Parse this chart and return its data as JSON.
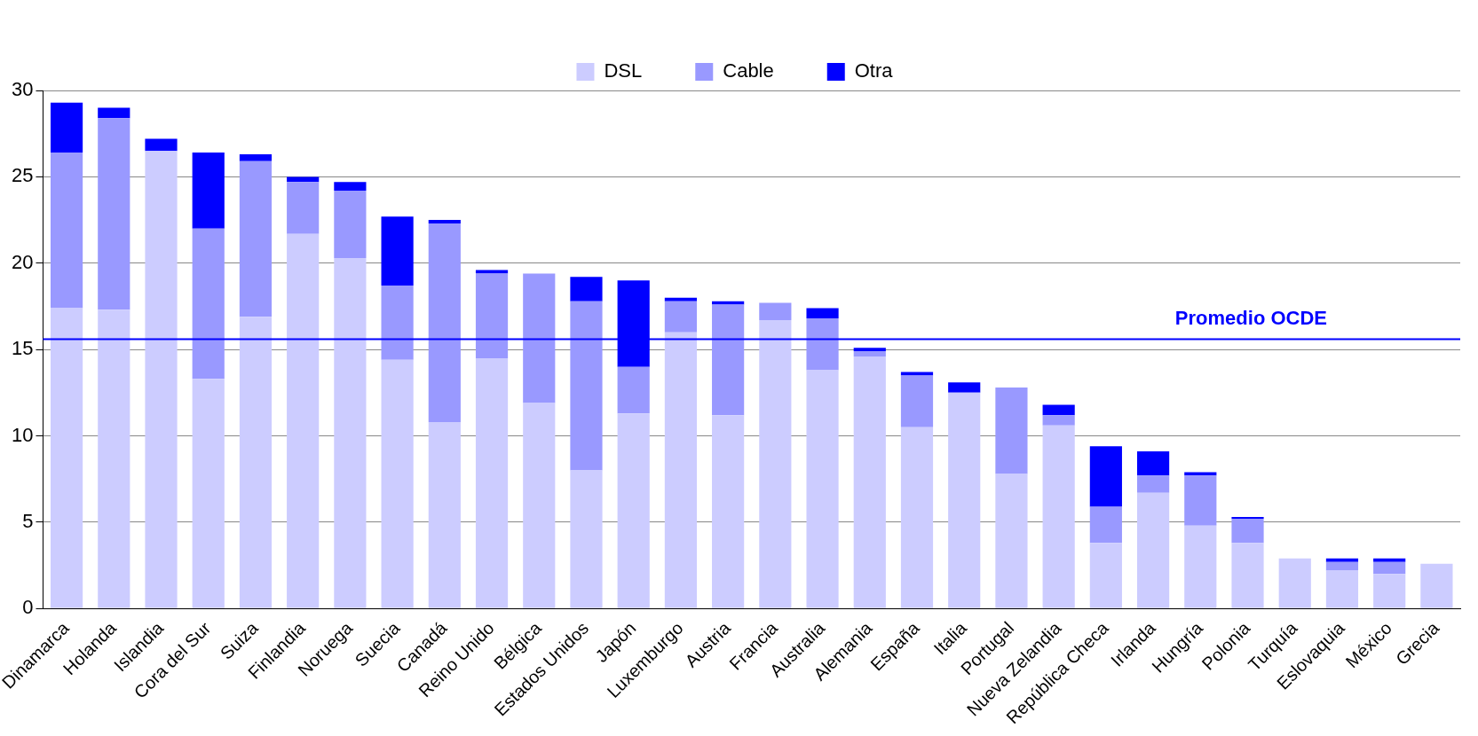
{
  "chart_data": {
    "type": "bar",
    "stacked": true,
    "categories": [
      "Dinamarca",
      "Holanda",
      "Islandia",
      "Cora del Sur",
      "Suiza",
      "Finlandia",
      "Noruega",
      "Suecia",
      "Canadá",
      "Reino Unido",
      "Bélgica",
      "Estados Unidos",
      "Japón",
      "Luxemburgo",
      "Austria",
      "Francia",
      "Australia",
      "Alemania",
      "España",
      "Italia",
      "Portugal",
      "Nueva Zelandia",
      "República Checa",
      "Irlanda",
      "Hungría",
      "Polonia",
      "Turquía",
      "Eslovaquia",
      "México",
      "Grecia"
    ],
    "series": [
      {
        "name": "DSL",
        "color": "#ccccff",
        "values": [
          17.4,
          17.3,
          26.5,
          13.3,
          16.9,
          21.7,
          20.3,
          14.4,
          10.8,
          14.5,
          11.9,
          8.0,
          11.3,
          16.0,
          11.2,
          16.7,
          13.8,
          14.6,
          10.5,
          12.5,
          7.8,
          10.6,
          3.8,
          6.7,
          4.8,
          3.8,
          2.9,
          2.2,
          2.0,
          2.6
        ]
      },
      {
        "name": "Cable",
        "color": "#9999ff",
        "values": [
          9.0,
          11.1,
          0,
          8.7,
          9.0,
          3.0,
          3.9,
          4.3,
          11.5,
          4.9,
          7.5,
          9.8,
          2.7,
          1.8,
          6.4,
          1.0,
          3.0,
          0.3,
          3.0,
          0,
          5.0,
          0.6,
          2.1,
          1.0,
          2.9,
          1.4,
          0,
          0.5,
          0.7,
          0
        ]
      },
      {
        "name": "Otra",
        "color": "#0000ff",
        "values": [
          2.9,
          0.6,
          0.7,
          4.4,
          0.4,
          0.3,
          0.5,
          4.0,
          0.2,
          0.2,
          0,
          1.4,
          5.0,
          0.2,
          0.2,
          0,
          0.6,
          0.2,
          0.2,
          0.6,
          0,
          0.6,
          3.5,
          1.4,
          0.2,
          0.1,
          0,
          0.2,
          0.2,
          0
        ]
      }
    ],
    "ylim": [
      0,
      30
    ],
    "yticks": [
      0,
      5,
      10,
      15,
      20,
      25,
      30
    ],
    "grid": "y",
    "legend": "top",
    "ref_lines": [
      {
        "axis": "y",
        "value": 15.6,
        "label": "Promedio OCDE",
        "color": "#0000ff"
      }
    ]
  }
}
